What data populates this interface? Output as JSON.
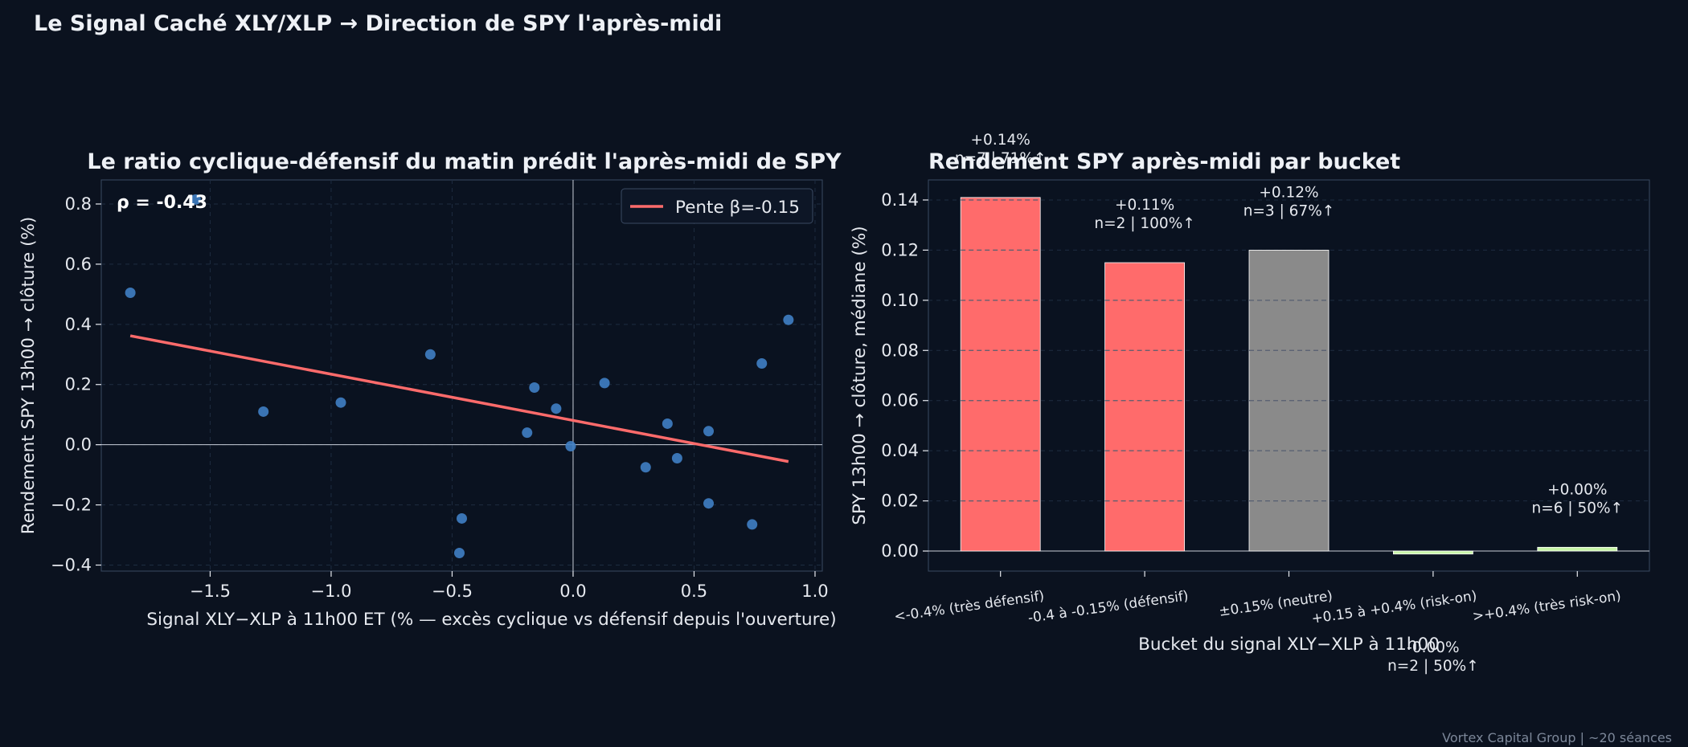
{
  "suptitle": "Le Signal Caché XLY/XLP  →  Direction de SPY l'après-midi",
  "footer": "Vortex Capital Group  |  ~20 séances",
  "colors": {
    "background": "#0b121f",
    "plot_bg": "#0a1220",
    "scatter_point": "#3f7fc4",
    "regression_line": "#ff6b6b",
    "bar_defensive": "#ff6b6b",
    "bar_neutral": "#8a8a8a",
    "bar_risk_on": "#c8f5a8"
  },
  "chart_data": [
    {
      "type": "scatter",
      "title": "Le ratio cyclique-défensif du matin prédit l'après-midi de SPY",
      "xlabel": "Signal XLY−XLP à 11h00 ET  (% — excès cyclique vs défensif depuis l'ouverture)",
      "ylabel": "Rendement SPY 13h00 → clôture (%)",
      "xlim": [
        -1.95,
        1.03
      ],
      "ylim": [
        -0.42,
        0.88
      ],
      "xticks": [
        -1.5,
        -1.0,
        -0.5,
        0.0,
        0.5,
        1.0
      ],
      "xtick_labels": [
        "−1.5",
        "−1.0",
        "−0.5",
        "0.0",
        "0.5",
        "1.0"
      ],
      "yticks": [
        -0.4,
        -0.2,
        0.0,
        0.2,
        0.4,
        0.6,
        0.8
      ],
      "ytick_labels": [
        "−0.4",
        "−0.2",
        "0.0",
        "0.2",
        "0.4",
        "0.6",
        "0.8"
      ],
      "grid": true,
      "annotation": "ρ = -0.43",
      "legend": {
        "label": "Pente β=-0.15",
        "placement": "top-right"
      },
      "regression": {
        "x": [
          -1.83,
          0.89
        ],
        "y": [
          0.362,
          -0.056
        ]
      },
      "points": [
        {
          "x": -1.83,
          "y": 0.505
        },
        {
          "x": -1.56,
          "y": 0.815
        },
        {
          "x": -1.28,
          "y": 0.11
        },
        {
          "x": -0.96,
          "y": 0.14
        },
        {
          "x": -0.59,
          "y": 0.3
        },
        {
          "x": -0.47,
          "y": -0.36
        },
        {
          "x": -0.46,
          "y": -0.245
        },
        {
          "x": -0.19,
          "y": 0.04
        },
        {
          "x": -0.16,
          "y": 0.19
        },
        {
          "x": -0.07,
          "y": 0.12
        },
        {
          "x": -0.01,
          "y": -0.005
        },
        {
          "x": 0.13,
          "y": 0.205
        },
        {
          "x": 0.3,
          "y": -0.075
        },
        {
          "x": 0.39,
          "y": 0.07
        },
        {
          "x": 0.43,
          "y": -0.045
        },
        {
          "x": 0.56,
          "y": 0.045
        },
        {
          "x": 0.56,
          "y": -0.195
        },
        {
          "x": 0.74,
          "y": -0.265
        },
        {
          "x": 0.78,
          "y": 0.27
        },
        {
          "x": 0.89,
          "y": 0.415
        }
      ]
    },
    {
      "type": "bar",
      "title": "Rendement SPY après-midi par bucket",
      "xlabel": "Bucket du signal XLY−XLP à 11h00",
      "ylabel": "SPY 13h00 → clôture, médiane (%)",
      "ylim": [
        -0.008,
        0.148
      ],
      "yticks": [
        0.0,
        0.02,
        0.04,
        0.06,
        0.08,
        0.1,
        0.12,
        0.14
      ],
      "ytick_labels": [
        "0.00",
        "0.02",
        "0.04",
        "0.06",
        "0.08",
        "0.10",
        "0.12",
        "0.14"
      ],
      "grid": true,
      "categories": [
        "<-0.4% (très défensif)",
        "-0.4 à -0.15% (défensif)",
        "±0.15% (neutre)",
        "+0.15 à +0.4% (risk-on)",
        ">+0.4% (très risk-on)"
      ],
      "values": [
        0.141,
        0.115,
        0.12,
        -0.0012,
        0.0015
      ],
      "bar_colors": [
        "#ff6b6b",
        "#ff6b6b",
        "#8a8a8a",
        "#c8f5a8",
        "#c8f5a8"
      ],
      "labels_value": [
        "+0.14%",
        "+0.11%",
        "+0.12%",
        "-0.00%",
        "+0.00%"
      ],
      "labels_stats": [
        "n=7  |  71%↑",
        "n=2  |  100%↑",
        "n=3  |  67%↑",
        "n=2  |  50%↑",
        "n=6  |  50%↑"
      ]
    }
  ]
}
